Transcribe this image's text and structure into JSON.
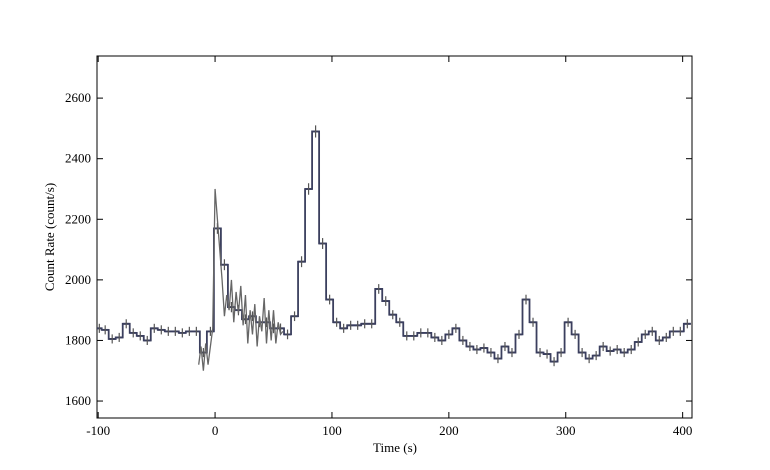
{
  "chart_data": {
    "type": "step",
    "xlabel": "Time (s)",
    "ylabel": "Count Rate (count/s)",
    "xlim": [
      -101,
      408
    ],
    "ylim": [
      1544,
      2739
    ],
    "xticks": [
      -100,
      0,
      100,
      200,
      300,
      400
    ],
    "yticks": [
      1600,
      1800,
      2000,
      2200,
      2400,
      2600
    ],
    "series": [
      {
        "color": "#3b3f5e",
        "bins": [
          -101,
          -97,
          -91,
          -85,
          -79,
          -73,
          -67,
          -61,
          -55,
          -49,
          -43,
          -37,
          -31,
          -25,
          -19,
          -13,
          -7,
          -1,
          5,
          11,
          17,
          23,
          29,
          35,
          41,
          47,
          53,
          59,
          65,
          71,
          77,
          83,
          89,
          95,
          101,
          107,
          113,
          119,
          125,
          131,
          137,
          143,
          149,
          155,
          161,
          167,
          173,
          179,
          185,
          191,
          197,
          203,
          209,
          215,
          221,
          227,
          233,
          239,
          245,
          251,
          257,
          263,
          269,
          275,
          281,
          287,
          293,
          299,
          305,
          311,
          317,
          323,
          329,
          335,
          341,
          347,
          353,
          359,
          365,
          371,
          377,
          383,
          389,
          395,
          401,
          407
        ],
        "values": [
          1840,
          1835,
          1805,
          1810,
          1855,
          1825,
          1815,
          1800,
          1840,
          1835,
          1830,
          1830,
          1825,
          1830,
          1830,
          1760,
          1830,
          2170,
          2050,
          1910,
          1900,
          1870,
          1880,
          1860,
          1860,
          1840,
          1840,
          1820,
          1880,
          2060,
          2300,
          2490,
          2120,
          1935,
          1860,
          1840,
          1850,
          1850,
          1855,
          1855,
          1970,
          1930,
          1885,
          1860,
          1815,
          1815,
          1825,
          1825,
          1810,
          1800,
          1820,
          1840,
          1800,
          1780,
          1770,
          1775,
          1760,
          1740,
          1780,
          1760,
          1820,
          1935,
          1860,
          1760,
          1755,
          1730,
          1760,
          1860,
          1820,
          1760,
          1740,
          1750,
          1780,
          1765,
          1770,
          1760,
          1770,
          1795,
          1820,
          1830,
          1800,
          1810,
          1830,
          1830,
          1855
        ],
        "errors": [
          15,
          15,
          15,
          15,
          15,
          15,
          15,
          15,
          15,
          15,
          15,
          15,
          15,
          15,
          15,
          15,
          15,
          18,
          18,
          17,
          17,
          16,
          16,
          16,
          16,
          16,
          16,
          16,
          16,
          18,
          19,
          20,
          18,
          16,
          15,
          15,
          15,
          15,
          15,
          15,
          16,
          16,
          15,
          15,
          15,
          15,
          15,
          15,
          15,
          15,
          15,
          15,
          15,
          15,
          15,
          15,
          15,
          15,
          15,
          15,
          15,
          16,
          15,
          15,
          15,
          15,
          15,
          15,
          15,
          15,
          15,
          15,
          15,
          15,
          15,
          15,
          15,
          15,
          15,
          15,
          15,
          15,
          15,
          15,
          15
        ]
      },
      {
        "color": "#666666",
        "x": [
          -14,
          -12,
          -10,
          -8,
          -6,
          -4,
          -2,
          0,
          2,
          4,
          6,
          8,
          10,
          12,
          14,
          16,
          18,
          20,
          22,
          24,
          26,
          28,
          30,
          32,
          34,
          36,
          38,
          40,
          42,
          44,
          46,
          48,
          50,
          52,
          54,
          56,
          58
        ],
        "values": [
          1720,
          1780,
          1700,
          1790,
          1720,
          1780,
          1840,
          2300,
          2200,
          2100,
          2000,
          1880,
          1950,
          1900,
          2000,
          1860,
          1960,
          1890,
          1980,
          1850,
          1950,
          1790,
          1900,
          1820,
          1920,
          1780,
          1880,
          1830,
          1940,
          1790,
          1900,
          1800,
          1900,
          1790,
          1860,
          1820,
          1830
        ]
      }
    ]
  }
}
